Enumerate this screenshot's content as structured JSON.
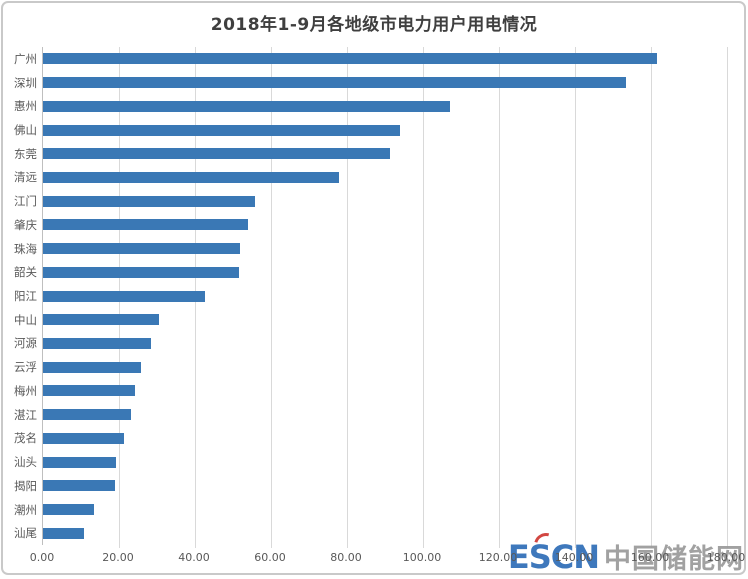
{
  "chart_data": {
    "type": "bar",
    "orientation": "horizontal",
    "title": "2018年1-9月各地级市电力用户用电情况",
    "categories": [
      "广州",
      "深圳",
      "惠州",
      "佛山",
      "东莞",
      "清远",
      "江门",
      "肇庆",
      "珠海",
      "韶关",
      "阳江",
      "中山",
      "河源",
      "云浮",
      "梅州",
      "湛江",
      "茂名",
      "汕头",
      "揭阳",
      "潮州",
      "汕尾"
    ],
    "values": [
      161.5,
      153.5,
      107.2,
      94.0,
      91.2,
      77.8,
      55.9,
      53.9,
      51.8,
      51.5,
      42.5,
      30.6,
      28.4,
      25.8,
      24.3,
      23.1,
      21.4,
      19.2,
      19.0,
      13.3,
      10.7
    ],
    "xlim": [
      0,
      180
    ],
    "x_ticks": [
      "0.00",
      "20.00",
      "40.00",
      "60.00",
      "80.00",
      "100.00",
      "120.00",
      "140.00",
      "160.00",
      "180.00"
    ],
    "grid": "vertical",
    "legend": "none",
    "bar_color": "#3a78b5",
    "gridline_color": "#d9d9d9",
    "axis_line_color": "#bfbfbf",
    "title_color": "#3f3f3f",
    "label_color": "#595959"
  },
  "watermark": {
    "logo": "ESCN",
    "text": "中国储能网",
    "logo_color": "#2e6db7",
    "accent_color": "#cf3832",
    "text_color": "#9a9a9a"
  }
}
